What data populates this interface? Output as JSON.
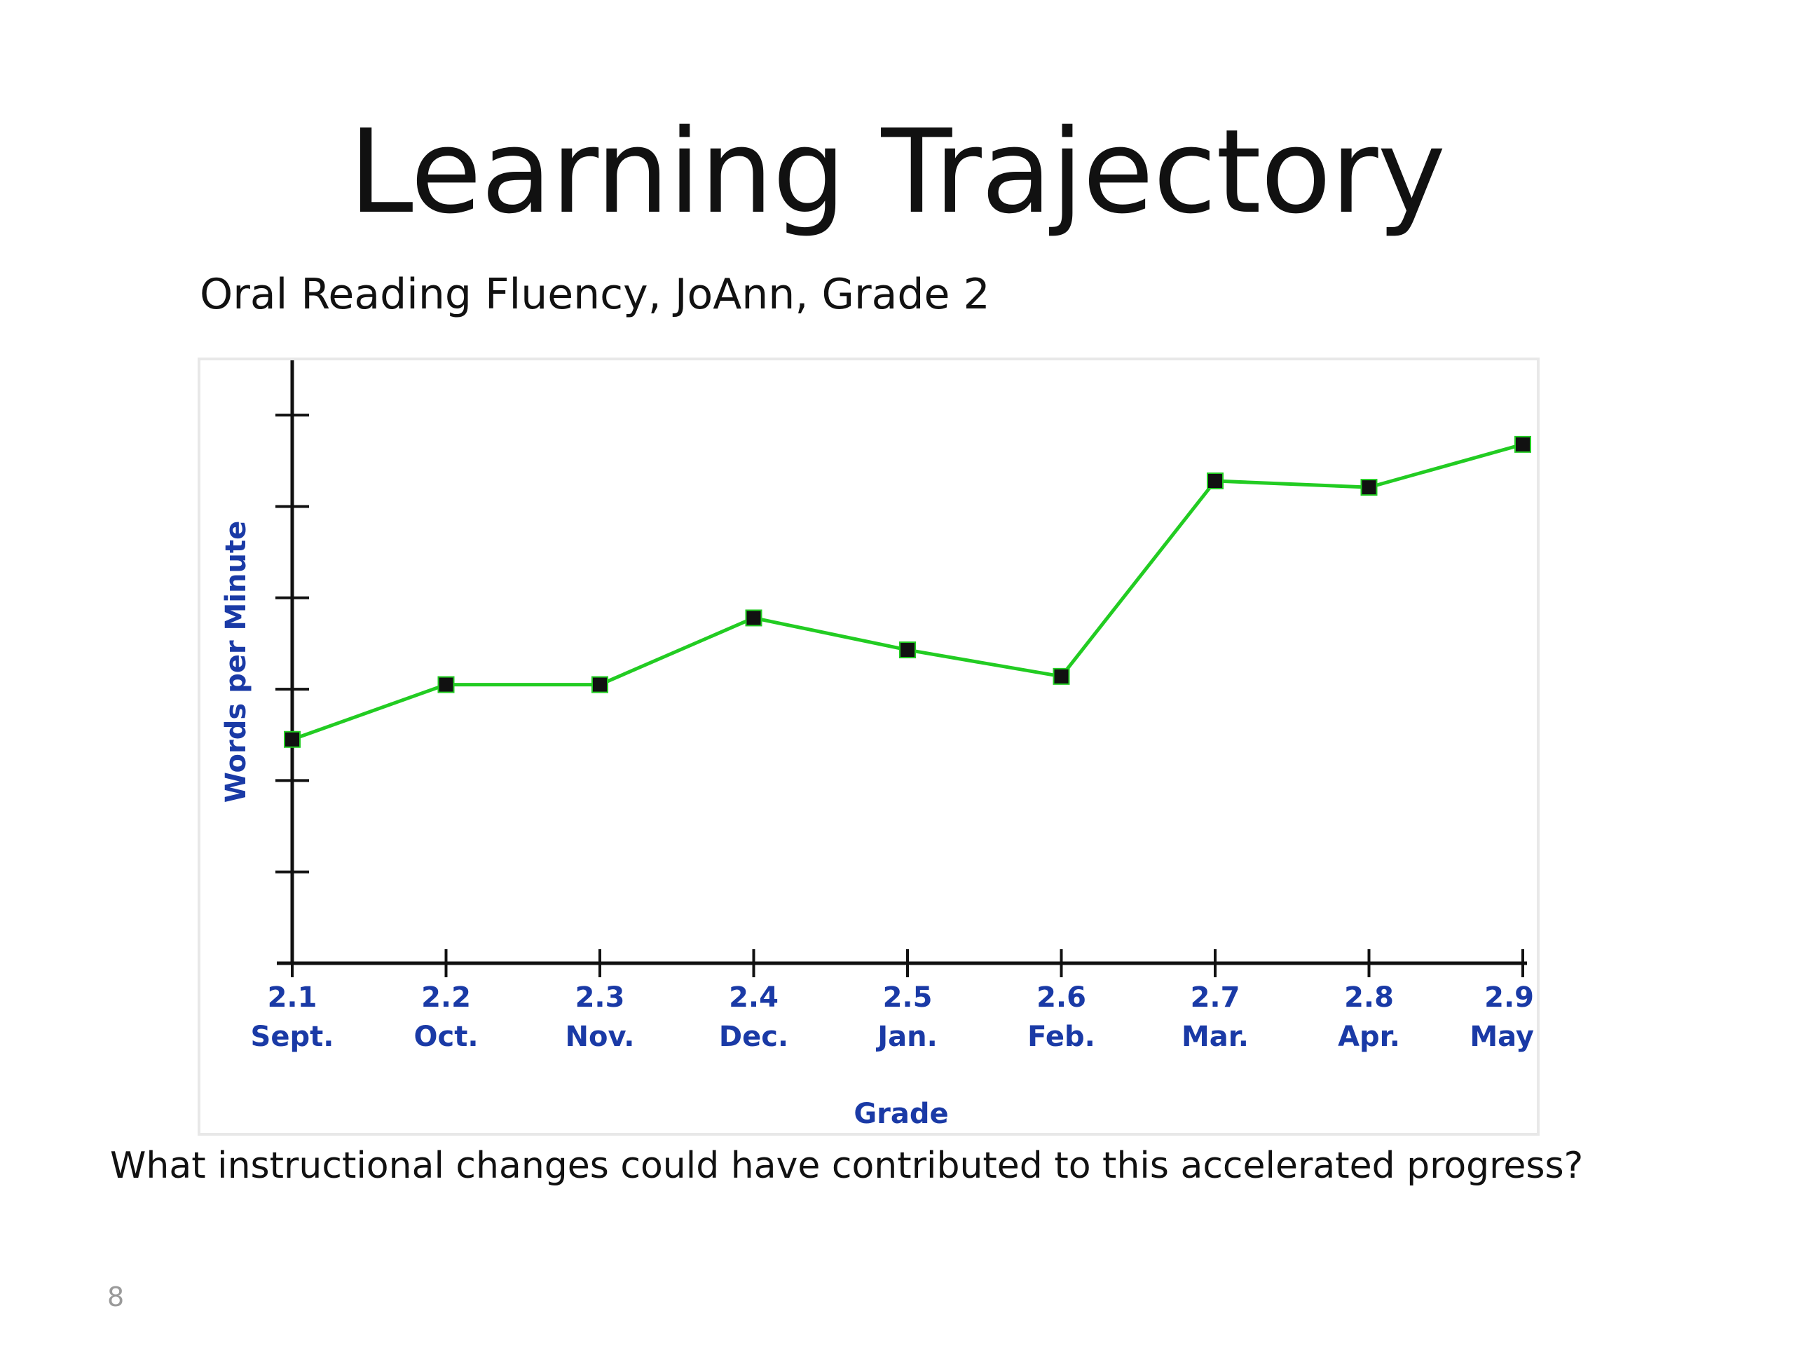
{
  "slide": {
    "title": "Learning Trajectory",
    "question": "What instructional changes could have contributed to this accelerated progress?",
    "page_number": "8"
  },
  "chart_data": {
    "type": "line",
    "title": "Oral Reading Fluency, JoAnn, Grade 2",
    "xlabel": "Grade",
    "ylabel": "Words per Minute",
    "x": [
      "2.1",
      "2.2",
      "2.3",
      "2.4",
      "2.5",
      "2.6",
      "2.7",
      "2.8",
      "2.9"
    ],
    "x_month_labels": [
      "Sept.",
      "Oct.",
      "Nov.",
      "Dec.",
      "Jan.",
      "Feb.",
      "Mar.",
      "Apr.",
      "May"
    ],
    "series": [
      {
        "values": [
          2.45,
          3.05,
          3.05,
          3.78,
          3.43,
          3.14,
          5.28,
          5.21,
          5.68
        ],
        "color": "#22cc22",
        "marker_color": "#111111"
      }
    ],
    "ylim": [
      0,
      6.6
    ],
    "y_ticks": [
      1,
      2,
      3,
      4,
      5,
      6
    ],
    "y_tick_labels_shown": false,
    "grid": false,
    "legend": "none"
  }
}
